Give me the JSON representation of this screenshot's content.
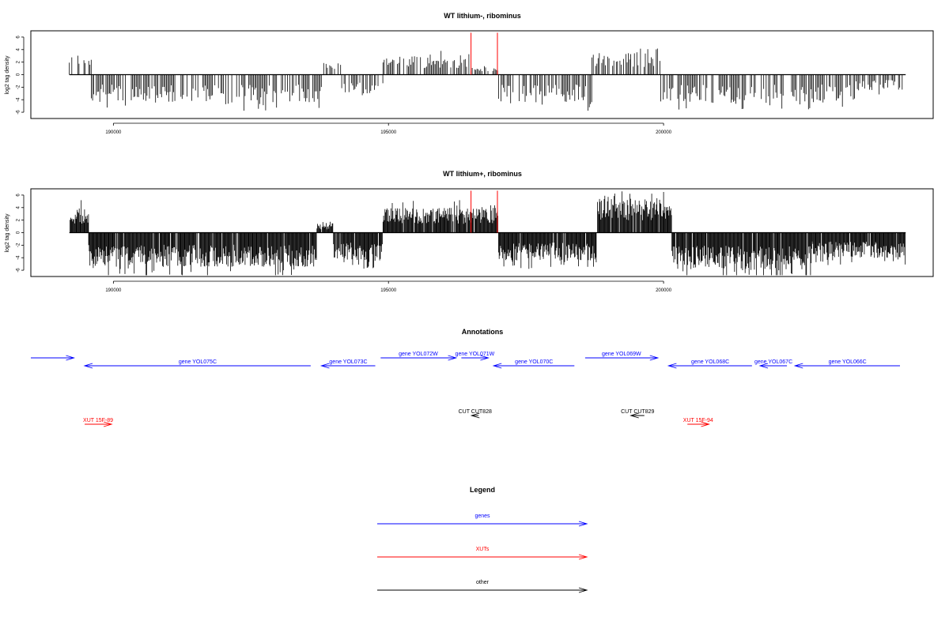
{
  "colors": {
    "genes": "#0000ff",
    "xuts": "#ff0000",
    "other": "#000000",
    "peak": "#ff0000"
  },
  "chart_data": [
    {
      "type": "bar",
      "title": "WT lithium-, ribominus",
      "ylabel": "log2 tag density",
      "xlim": [
        188500,
        204900
      ],
      "ylim": [
        -7,
        7
      ],
      "yticks": [
        -6,
        -4,
        -2,
        0,
        2,
        4,
        6
      ],
      "xticks": [
        190000,
        195000,
        200000
      ],
      "density": "low",
      "peaks": [
        196500,
        196980
      ],
      "segments": [
        {
          "from": 189200,
          "to": 189600,
          "sign": 1,
          "amp": 3.5
        },
        {
          "from": 189600,
          "to": 193800,
          "sign": -1,
          "amp": 4.5
        },
        {
          "from": 193800,
          "to": 194150,
          "sign": 1,
          "amp": 2.0
        },
        {
          "from": 194150,
          "to": 194900,
          "sign": -1,
          "amp": 3.0
        },
        {
          "from": 194900,
          "to": 196500,
          "sign": 1,
          "amp": 3.0
        },
        {
          "from": 196500,
          "to": 197000,
          "sign": 1,
          "amp": 1.2
        },
        {
          "from": 197000,
          "to": 198700,
          "sign": -1,
          "amp": 4.5
        },
        {
          "from": 198700,
          "to": 199950,
          "sign": 1,
          "amp": 3.5
        },
        {
          "from": 199950,
          "to": 203500,
          "sign": -1,
          "amp": 4.5
        },
        {
          "from": 203500,
          "to": 204400,
          "sign": -1,
          "amp": 2.5
        }
      ]
    },
    {
      "type": "bar",
      "title": "WT lithium+, ribominus",
      "ylabel": "log2 tag density",
      "xlim": [
        188500,
        204900
      ],
      "ylim": [
        -7,
        7
      ],
      "yticks": [
        -6,
        -4,
        -2,
        0,
        2,
        4,
        6
      ],
      "xticks": [
        190000,
        195000,
        200000
      ],
      "density": "high",
      "peaks": [
        196500,
        196980
      ],
      "segments": [
        {
          "from": 189200,
          "to": 189550,
          "sign": 1,
          "amp": 4.0
        },
        {
          "from": 189550,
          "to": 193700,
          "sign": -1,
          "amp": 5.5
        },
        {
          "from": 193700,
          "to": 194000,
          "sign": 1,
          "amp": 1.5
        },
        {
          "from": 194000,
          "to": 194900,
          "sign": -1,
          "amp": 4.5
        },
        {
          "from": 194900,
          "to": 197000,
          "sign": 1,
          "amp": 4.0
        },
        {
          "from": 197000,
          "to": 198800,
          "sign": -1,
          "amp": 4.5
        },
        {
          "from": 198800,
          "to": 200150,
          "sign": 1,
          "amp": 5.5
        },
        {
          "from": 200150,
          "to": 202700,
          "sign": -1,
          "amp": 6.0
        },
        {
          "from": 202700,
          "to": 204400,
          "sign": -1,
          "amp": 4.0
        }
      ]
    }
  ],
  "annotations": {
    "title": "Annotations",
    "xlim": [
      188500,
      204900
    ],
    "genes": [
      {
        "label": "",
        "start": 188500,
        "end": 189300,
        "strand": "+",
        "row": 0
      },
      {
        "label": "gene YOL075C",
        "start": 189500,
        "end": 193700,
        "strand": "-",
        "row": 1
      },
      {
        "label": "gene YOL073C",
        "start": 193900,
        "end": 194900,
        "strand": "-",
        "row": 1
      },
      {
        "label": "gene YOL072W",
        "start": 195000,
        "end": 196400,
        "strand": "+",
        "row": 0
      },
      {
        "label": "gene YOL071W",
        "start": 196500,
        "end": 197000,
        "strand": "+",
        "row": 0
      },
      {
        "label": "gene YOL070C",
        "start": 197100,
        "end": 198600,
        "strand": "-",
        "row": 1
      },
      {
        "label": "gene YOL069W",
        "start": 198800,
        "end": 200150,
        "strand": "+",
        "row": 0
      },
      {
        "label": "gene YOL068C",
        "start": 200350,
        "end": 201900,
        "strand": "-",
        "row": 1
      },
      {
        "label": "gene YOL067C",
        "start": 202050,
        "end": 202550,
        "strand": "-",
        "row": 1
      },
      {
        "label": "gene YOL066C",
        "start": 202700,
        "end": 204650,
        "strand": "-",
        "row": 1
      }
    ],
    "xuts": [
      {
        "label": "XUT 15F-89",
        "start": 189500,
        "end": 190000,
        "strand": "+"
      },
      {
        "label": "XUT 15F-94",
        "start": 200700,
        "end": 201100,
        "strand": "+"
      }
    ],
    "other": [
      {
        "label": "CUT CUT828",
        "start": 196690,
        "end": 196820,
        "strand": "-"
      },
      {
        "label": "CUT CUT829",
        "start": 199650,
        "end": 199900,
        "strand": "-"
      }
    ]
  },
  "legend": {
    "title": "Legend",
    "items": [
      {
        "label": "genes",
        "color_key": "genes"
      },
      {
        "label": "XUTs",
        "color_key": "xuts"
      },
      {
        "label": "other",
        "color_key": "other"
      }
    ]
  }
}
